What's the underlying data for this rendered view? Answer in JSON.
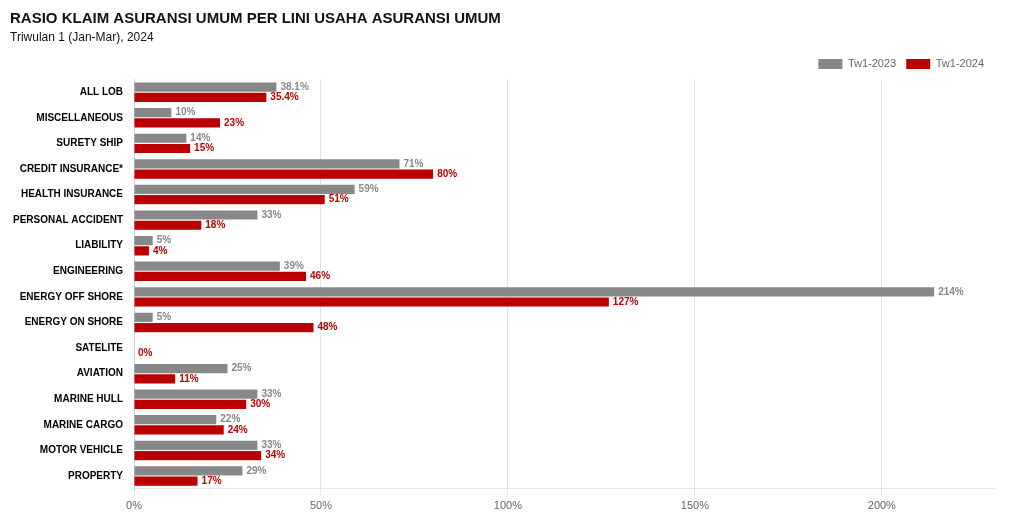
{
  "chart_data": {
    "type": "bar",
    "orientation": "horizontal",
    "title": "RASIO KLAIM ASURANSI UMUM PER LINI USAHA ASURANSI UMUM",
    "subtitle": "Triwulan 1 (Jan-Mar), 2024",
    "categories": [
      "ALL LOB",
      "MISCELLANEOUS",
      "SURETY SHIP",
      "CREDIT INSURANCE*",
      "HEALTH INSURANCE",
      "PERSONAL ACCIDENT",
      "LIABILITY",
      "ENGINEERING",
      "ENERGY OFF SHORE",
      "ENERGY ON SHORE",
      "SATELITE",
      "AVIATION",
      "MARINE HULL",
      "MARINE CARGO",
      "MOTOR VEHICLE",
      "PROPERTY"
    ],
    "series": [
      {
        "name": "Tw1-2023",
        "color": "#888888",
        "values": [
          38.1,
          10,
          14,
          71,
          59,
          33,
          5,
          39,
          214,
          5,
          0,
          25,
          33,
          22,
          33,
          29
        ],
        "value_labels": [
          "38.1%",
          "10%",
          "14%",
          "71%",
          "59%",
          "33%",
          "5%",
          "39%",
          "214%",
          "5%",
          null,
          "25%",
          "33%",
          "22%",
          "33%",
          "29%"
        ]
      },
      {
        "name": "Tw1-2024",
        "color": "#bb0000",
        "values": [
          35.4,
          23,
          15,
          80,
          51,
          18,
          4,
          46,
          127,
          48,
          0,
          11,
          30,
          24,
          34,
          17
        ],
        "value_labels": [
          "35.4%",
          "23%",
          "15%",
          "80%",
          "51%",
          "18%",
          "4%",
          "46%",
          "127%",
          "48%",
          "0%",
          "11%",
          "30%",
          "24%",
          "34%",
          "17%"
        ]
      }
    ],
    "xlim": [
      0,
      230
    ],
    "xticks": [
      {
        "value": 0,
        "label": "0%"
      },
      {
        "value": 50,
        "label": "50%"
      },
      {
        "value": 100,
        "label": "100%"
      },
      {
        "value": 150,
        "label": "150%"
      },
      {
        "value": 200,
        "label": "200%"
      }
    ],
    "grid": true,
    "legend": "upper right",
    "data_labels": true
  }
}
